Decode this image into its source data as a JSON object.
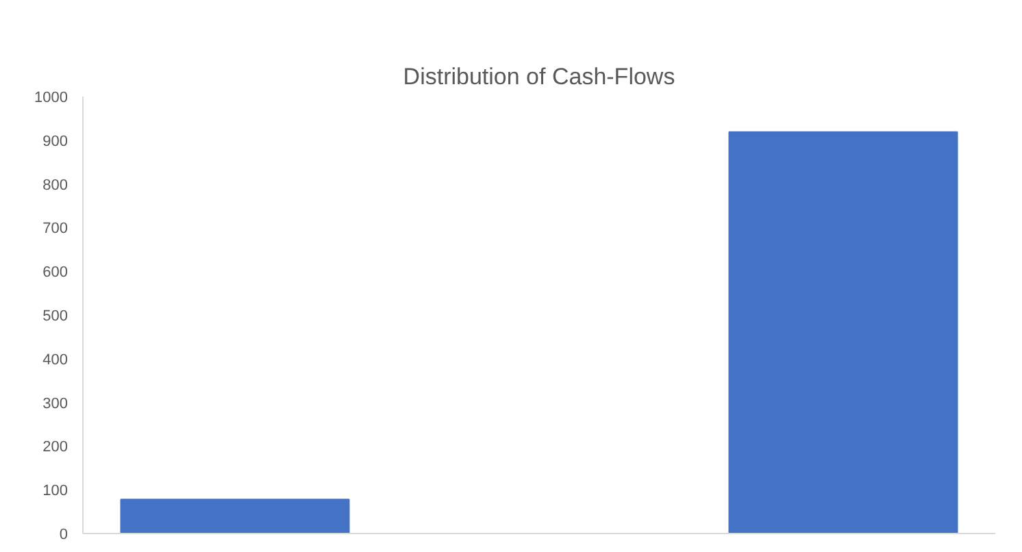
{
  "chart_data": {
    "type": "bar",
    "title": "Distribution of Cash-Flows",
    "categories": [
      null,
      null,
      null
    ],
    "values": [
      78,
      null,
      919
    ],
    "color": "#4472c4",
    "ylim": [
      0,
      1000
    ],
    "yticks": [
      0,
      100,
      200,
      300,
      400,
      500,
      600,
      700,
      800,
      900,
      1000
    ],
    "grid": false
  }
}
